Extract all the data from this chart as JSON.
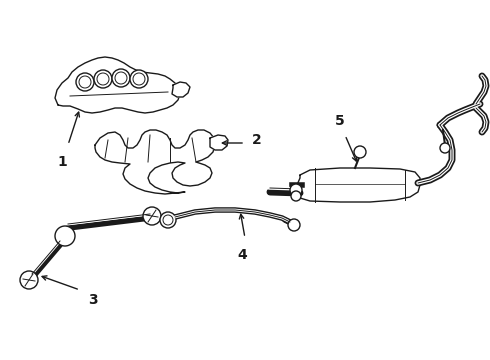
{
  "background_color": "#ffffff",
  "line_color": "#1a1a1a",
  "line_width": 1.0,
  "label_fontsize": 10,
  "figsize": [
    4.9,
    3.6
  ],
  "dpi": 100,
  "xlim": [
    0,
    490
  ],
  "ylim": [
    0,
    360
  ]
}
